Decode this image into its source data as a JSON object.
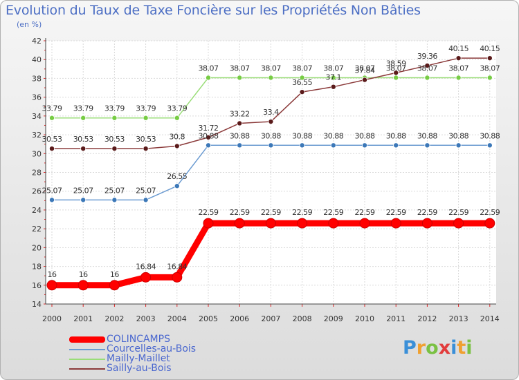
{
  "chart_data": {
    "type": "line",
    "title": "Evolution du Taux de Taxe Foncière sur les Propriétés Non Bâties",
    "subtitle": "(en %)",
    "xlabel": "",
    "ylabel": "(en %)",
    "ylim": [
      14,
      42
    ],
    "yticks": [
      14,
      16,
      18,
      20,
      22,
      24,
      26,
      28,
      30,
      32,
      34,
      36,
      38,
      40,
      42
    ],
    "categories": [
      "2000",
      "2001",
      "2002",
      "2003",
      "2004",
      "2005",
      "2006",
      "2007",
      "2008",
      "2009",
      "2010",
      "2011",
      "2012",
      "2013",
      "2014"
    ],
    "grid": true,
    "legend": "bottom-left",
    "series": [
      {
        "name": "COLINCAMPS",
        "color": "#ff0000",
        "marker": "#ff0000",
        "values": [
          16,
          16,
          16,
          16.84,
          16.84,
          22.59,
          22.59,
          22.59,
          22.59,
          22.59,
          22.59,
          22.59,
          22.59,
          22.59,
          22.59
        ],
        "labels": [
          "16",
          "16",
          "16",
          "16.84",
          "16.84",
          "22.59",
          "22.59",
          "22.59",
          "22.59",
          "22.59",
          "22.59",
          "22.59",
          "22.59",
          "22.59",
          "22.59"
        ]
      },
      {
        "name": "Courcelles-au-Bois",
        "color": "#6b9bd1",
        "marker": "#3c78b8",
        "values": [
          25.07,
          25.07,
          25.07,
          25.07,
          26.55,
          30.88,
          30.88,
          30.88,
          30.88,
          30.88,
          30.88,
          30.88,
          30.88,
          30.88,
          30.88
        ],
        "labels": [
          "25.07",
          "25.07",
          "25.07",
          "25.07",
          "26.55",
          "30.88",
          "30.88",
          "30.88",
          "30.88",
          "30.88",
          "30.88",
          "30.88",
          "30.88",
          "30.88",
          "30.88"
        ]
      },
      {
        "name": "Mailly-Maillet",
        "color": "#99dd77",
        "marker": "#77cc44",
        "values": [
          33.79,
          33.79,
          33.79,
          33.79,
          33.79,
          38.07,
          38.07,
          38.07,
          38.07,
          38.07,
          38.07,
          38.07,
          38.07,
          38.07,
          38.07
        ],
        "labels": [
          "33.79",
          "33.79",
          "33.79",
          "33.79",
          "33.79",
          "38.07",
          "38.07",
          "38.07",
          "38.07",
          "38.07",
          "38.07",
          "38.07",
          "38.07",
          "38.07",
          "38.07"
        ]
      },
      {
        "name": "Sailly-au-Bois",
        "color": "#8b3a3a",
        "marker": "#5a1a1a",
        "values": [
          30.53,
          30.53,
          30.53,
          30.53,
          30.8,
          31.72,
          33.22,
          33.4,
          36.55,
          37.1,
          37.84,
          38.59,
          39.36,
          40.15,
          40.15
        ],
        "labels": [
          "30.53",
          "30.53",
          "30.53",
          "30.53",
          "30.8",
          "31.72",
          "33.22",
          "33.4",
          "36.55",
          "37.1",
          "37.84",
          "38.59",
          "39.36",
          "40.15",
          "40.15"
        ]
      }
    ]
  },
  "logo": {
    "letters": [
      "P",
      "r",
      "o",
      "x",
      "i",
      "t",
      "i"
    ],
    "colors": [
      "#3a8fd8",
      "#f0a030",
      "#7ac143",
      "#e23c3c",
      "#3a8fd8",
      "#f0a030",
      "#7ac143"
    ]
  }
}
